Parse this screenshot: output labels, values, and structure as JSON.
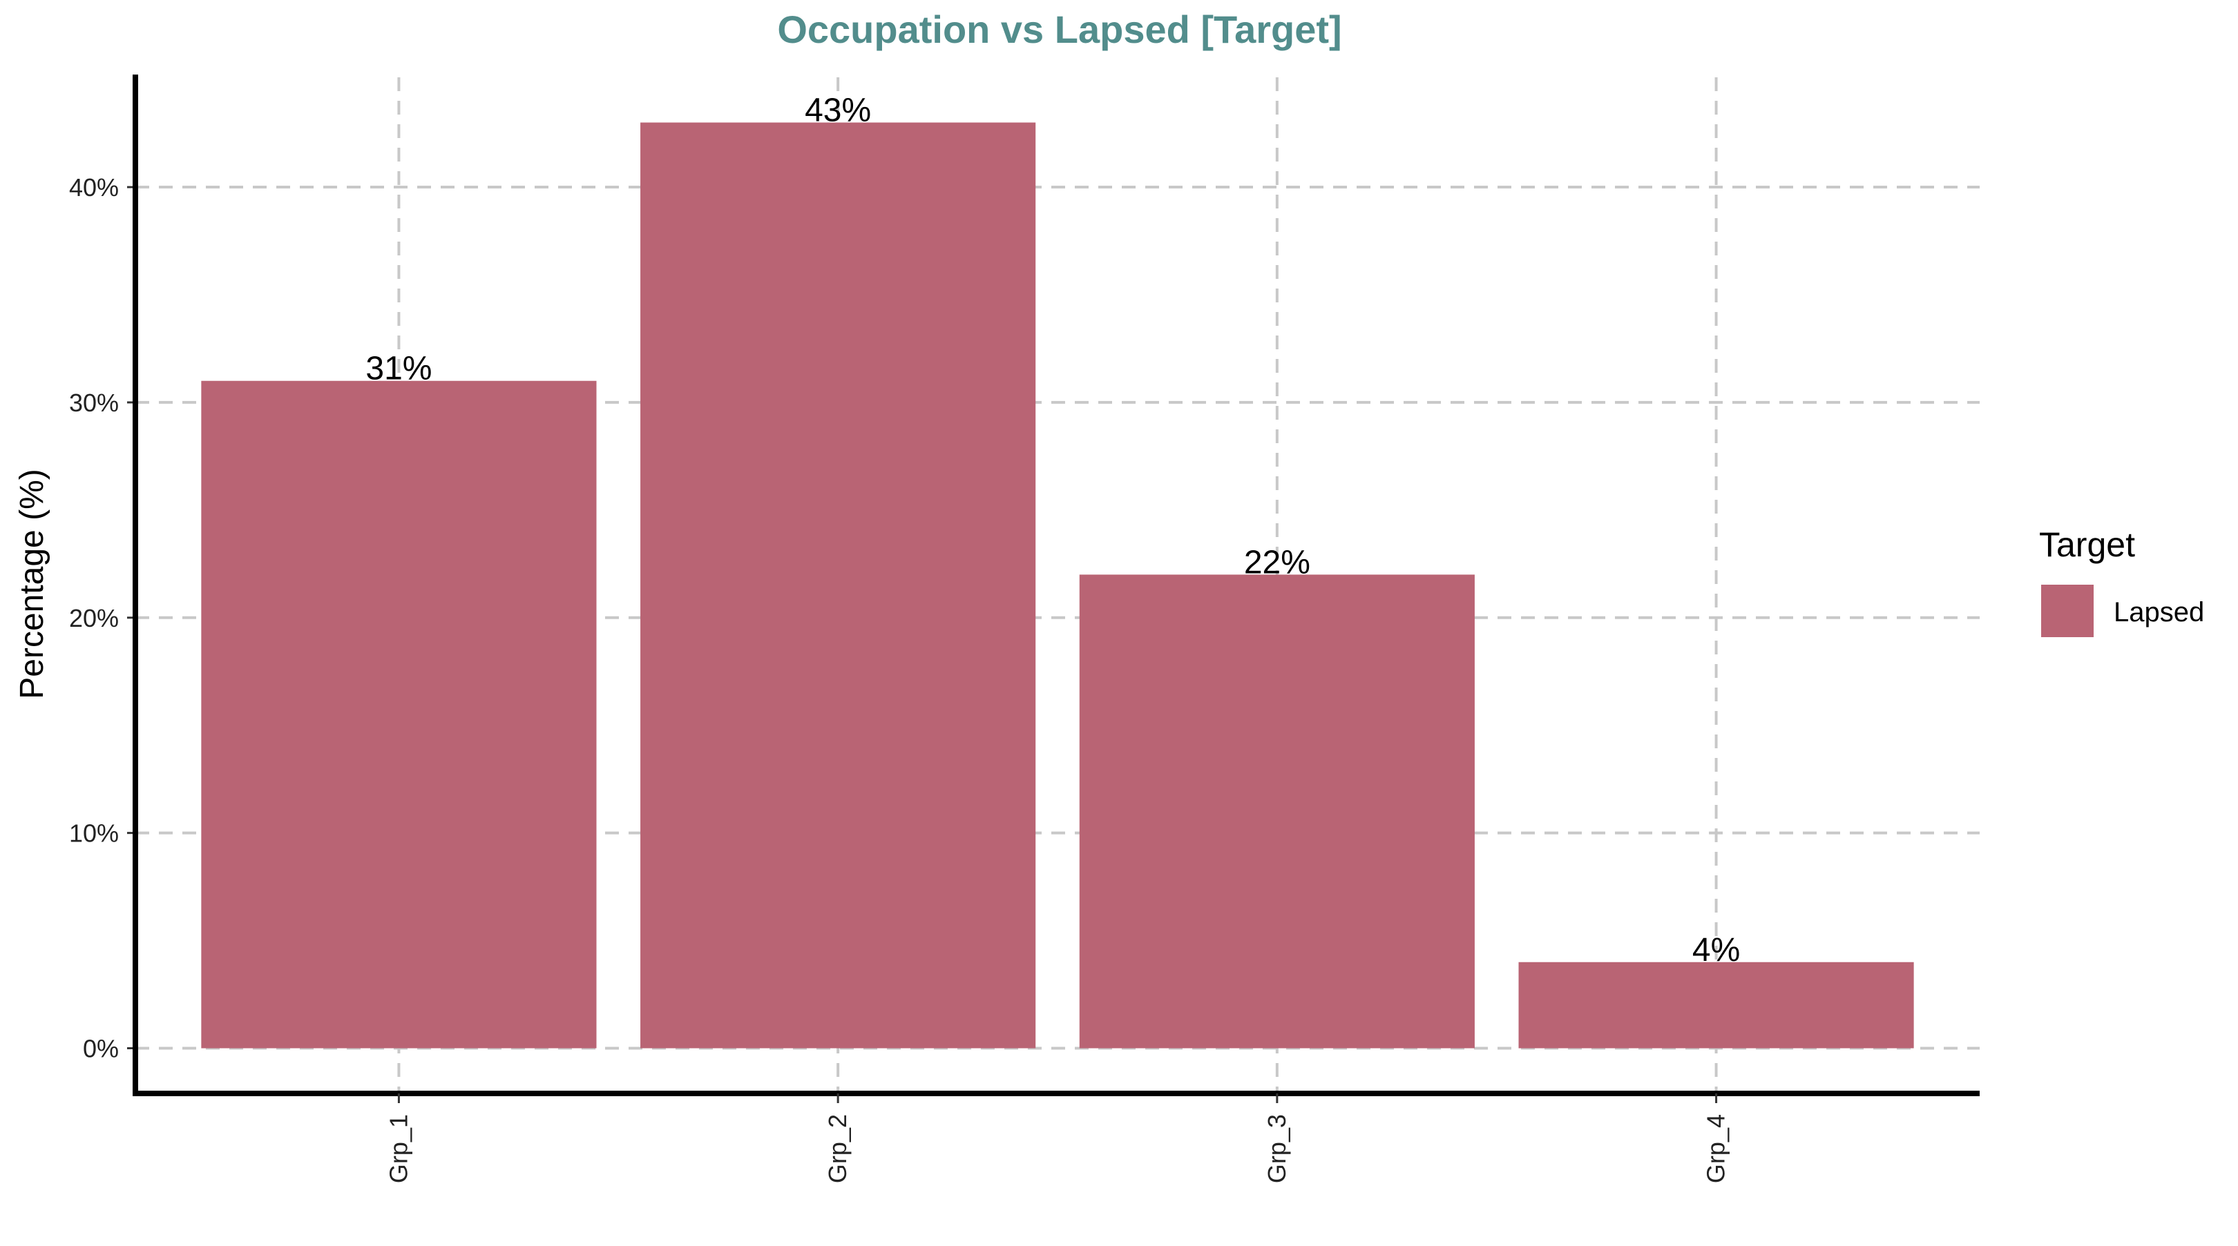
{
  "chart_data": {
    "type": "bar",
    "title": "Occupation vs Lapsed [Target]",
    "xlabel": "",
    "ylabel": "Percentage (%)",
    "categories": [
      "Grp_1",
      "Grp_2",
      "Grp_3",
      "Grp_4"
    ],
    "series": [
      {
        "name": "Lapsed",
        "values": [
          31,
          43,
          22,
          4
        ],
        "labels": [
          "31%",
          "43%",
          "22%",
          "4%"
        ],
        "color": "#b96474"
      }
    ],
    "ylim": [
      -2.1,
      45.1
    ],
    "yticks": [
      0,
      10,
      20,
      30,
      40
    ],
    "ytick_labels": [
      "0%",
      "10%",
      "20%",
      "30%",
      "40%"
    ],
    "grid": true,
    "legend": {
      "title": "Target",
      "position": "right",
      "entries": [
        "Lapsed"
      ]
    },
    "colors": {
      "title": "#528d8c",
      "bar": "#b96474",
      "grid": "#c8c8c8",
      "axis": "#000000"
    }
  }
}
